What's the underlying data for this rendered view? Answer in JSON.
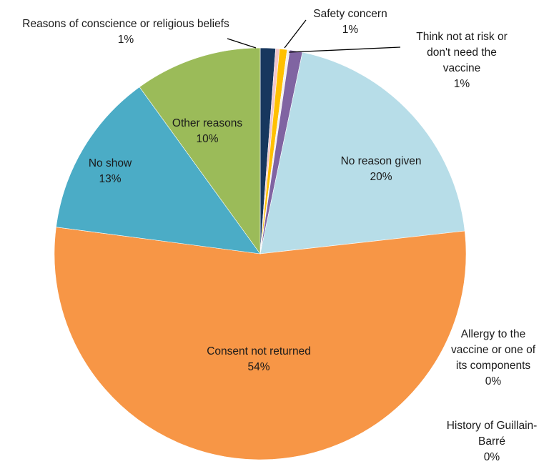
{
  "chart_data": {
    "type": "pie",
    "slices": [
      {
        "label_lines": [
          "Reasons of conscience or religious beliefs",
          "1%"
        ],
        "value": 1.2,
        "color": "#17375e"
      },
      {
        "label_lines": [],
        "value": 0.3,
        "color": "#f2c6c9"
      },
      {
        "label_lines": [
          "Safety concern",
          "1%"
        ],
        "value": 0.6,
        "color": "#ffc000"
      },
      {
        "label_lines": [],
        "value": 0.2,
        "color": "#f0f0f0"
      },
      {
        "label_lines": [
          "Think not at risk or",
          "don't need the",
          "vaccine",
          "1%"
        ],
        "value": 1.0,
        "color": "#8064a2"
      },
      {
        "label_lines": [
          "No reason given",
          "20%"
        ],
        "value": 20,
        "color": "#b7dde8"
      },
      {
        "label_lines": [
          "Allergy to the",
          "vaccine or one of",
          "its components",
          "0%"
        ],
        "value": 0,
        "color": "#cccccc"
      },
      {
        "label_lines": [
          "History of Guillain-",
          "Barré",
          "0%"
        ],
        "value": 0,
        "color": "#dddddd"
      },
      {
        "label_lines": [
          "Consent not returned",
          "54%"
        ],
        "value": 54,
        "color": "#f79646"
      },
      {
        "label_lines": [
          "No show",
          "13%"
        ],
        "value": 13,
        "color": "#4bacc6"
      },
      {
        "label_lines": [
          "Other reasons",
          "10%"
        ],
        "value": 10,
        "color": "#9bbb59"
      }
    ]
  }
}
